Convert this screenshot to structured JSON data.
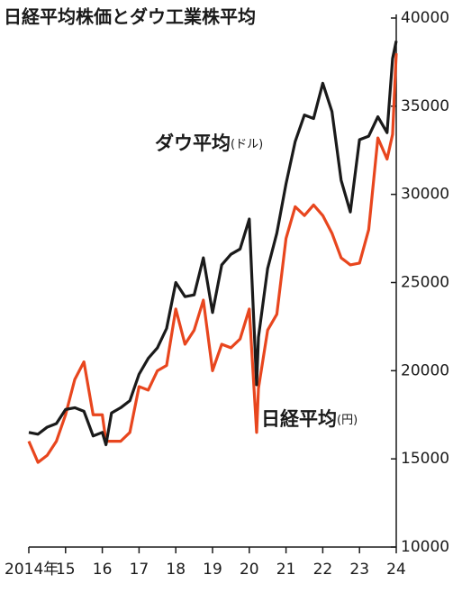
{
  "chart_data": {
    "type": "line",
    "title": "日経平均株価とダウ工業株平均",
    "x": [
      2014,
      2014.25,
      2014.5,
      2014.75,
      2015,
      2015.25,
      2015.5,
      2015.75,
      2016,
      2016.1,
      2016.25,
      2016.5,
      2016.75,
      2017,
      2017.25,
      2017.5,
      2017.75,
      2018,
      2018.25,
      2018.5,
      2018.75,
      2019,
      2019.25,
      2019.5,
      2019.75,
      2020,
      2020.2,
      2020.25,
      2020.5,
      2020.75,
      2021,
      2021.25,
      2021.5,
      2021.75,
      2022,
      2022.25,
      2022.5,
      2022.75,
      2023,
      2023.25,
      2023.5,
      2023.75,
      2023.9,
      2024
    ],
    "series": [
      {
        "name": "日経平均",
        "unit": "(円)",
        "color": "#e8461e",
        "values": [
          16000,
          14800,
          15200,
          16000,
          17500,
          19500,
          20500,
          17500,
          17500,
          16000,
          16000,
          16000,
          16500,
          19100,
          18900,
          20000,
          20300,
          23500,
          21500,
          22300,
          24000,
          20000,
          21500,
          21300,
          21800,
          23500,
          16500,
          19000,
          22300,
          23200,
          27500,
          29300,
          28800,
          29400,
          28800,
          27800,
          26400,
          26000,
          26100,
          28000,
          33200,
          32000,
          33400,
          38000
        ]
      },
      {
        "name": "ダウ平均",
        "unit": "(ドル)",
        "color": "#1a1a1a",
        "values": [
          16500,
          16400,
          16800,
          17000,
          17800,
          17900,
          17700,
          16300,
          16500,
          15800,
          17600,
          17900,
          18300,
          19800,
          20700,
          21300,
          22400,
          25000,
          24200,
          24300,
          26400,
          23300,
          26000,
          26600,
          26900,
          28600,
          19200,
          21900,
          25800,
          27800,
          30600,
          33000,
          34500,
          34300,
          36300,
          34700,
          30800,
          29000,
          33100,
          33300,
          34400,
          33500,
          37700,
          38700
        ]
      }
    ],
    "xlim": [
      2014,
      2024
    ],
    "xticks": [
      {
        "value": 2014,
        "label": "2014年"
      },
      {
        "value": 2015,
        "label": "15"
      },
      {
        "value": 2016,
        "label": "16"
      },
      {
        "value": 2017,
        "label": "17"
      },
      {
        "value": 2018,
        "label": "18"
      },
      {
        "value": 2019,
        "label": "19"
      },
      {
        "value": 2020,
        "label": "20"
      },
      {
        "value": 2021,
        "label": "21"
      },
      {
        "value": 2022,
        "label": "22"
      },
      {
        "value": 2023,
        "label": "23"
      },
      {
        "value": 2024,
        "label": "24"
      }
    ],
    "ylim": [
      10000,
      40000
    ],
    "yticks": [
      10000,
      15000,
      20000,
      25000,
      30000,
      35000,
      40000
    ]
  }
}
